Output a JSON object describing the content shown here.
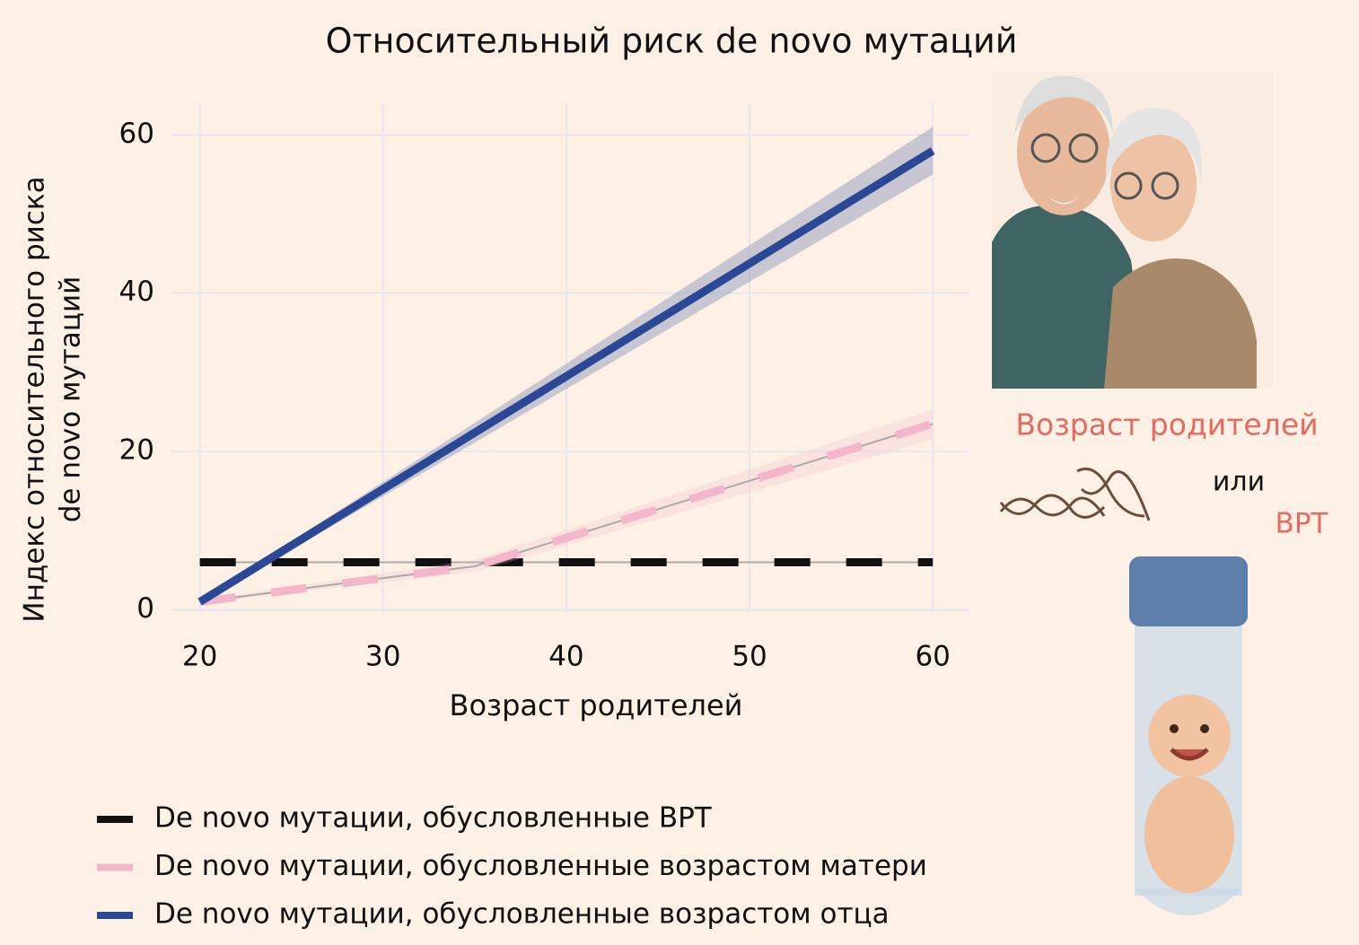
{
  "chart_data": {
    "type": "line",
    "title": "Относительный риск de novo мутаций",
    "x_label": "Возраст родителей",
    "y_label": [
      "Индекс относительного риска",
      "de novo мутаций"
    ],
    "xlim": [
      18.4,
      62
    ],
    "ylim": [
      -0.4,
      64
    ],
    "xticks": [
      20,
      30,
      40,
      50,
      60
    ],
    "yticks": [
      0,
      20,
      40,
      60
    ],
    "grid": true,
    "series": [
      {
        "name": "De novo мутации, обусловленные ВРТ",
        "color": "#111111",
        "dash": true,
        "x": [
          20,
          60
        ],
        "values": [
          6,
          6
        ]
      },
      {
        "name": "De novo мутации, обусловленные возрастом матери",
        "color": "#f4b6cb",
        "dash": true,
        "x": [
          20,
          35,
          60
        ],
        "values": [
          1,
          5.5,
          23.5
        ],
        "band": {
          "lower": [
            0.8,
            4.8,
            21.5
          ],
          "upper": [
            1.2,
            6.3,
            25.3
          ]
        }
      },
      {
        "name": "De novo мутации, обусловленные возрастом отца",
        "color": "#2b4897",
        "dash": false,
        "x": [
          20,
          60
        ],
        "values": [
          1,
          58
        ],
        "band": {
          "lower": [
            0.8,
            55
          ],
          "upper": [
            1.2,
            61
          ]
        }
      }
    ],
    "annotations": [
      "Возраст родителей",
      "или",
      "ВРТ"
    ]
  }
}
